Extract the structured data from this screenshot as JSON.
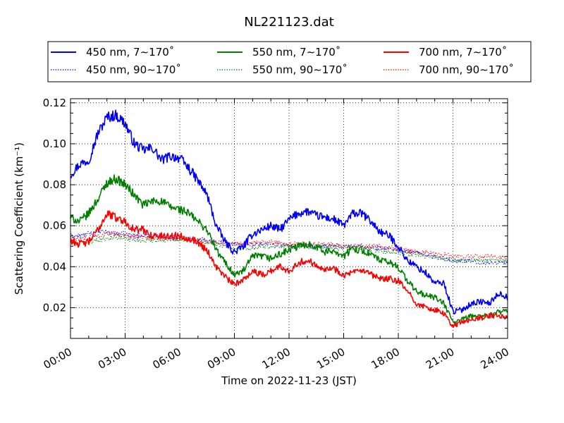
{
  "chart_data": {
    "type": "line",
    "title": "NL221123.dat",
    "xlabel": "Time on 2022-11-23 (JST)",
    "ylabel": "Scattering Coefficient (km⁻¹)",
    "xlim": [
      0,
      24
    ],
    "ylim": [
      0.005,
      0.122
    ],
    "x_ticks": [
      0,
      3,
      6,
      9,
      12,
      15,
      18,
      21,
      24
    ],
    "x_tick_labels": [
      "00:00",
      "03:00",
      "06:00",
      "09:00",
      "12:00",
      "15:00",
      "18:00",
      "21:00",
      "24:00"
    ],
    "y_ticks": [
      0.02,
      0.04,
      0.06,
      0.08,
      0.1,
      0.12
    ],
    "y_tick_labels": [
      "0.02",
      "0.04",
      "0.06",
      "0.08",
      "0.10",
      "0.12"
    ],
    "grid": true,
    "legend_position": "top",
    "series": [
      {
        "name": "450 nm, 7∼170˚",
        "color": "#0000ff",
        "style": "solid",
        "x": [
          0,
          0.5,
          1,
          1.5,
          2,
          2.5,
          3,
          3.5,
          4,
          4.5,
          5,
          5.5,
          6,
          6.5,
          7,
          7.5,
          8,
          8.5,
          9,
          9.5,
          10,
          10.5,
          11,
          11.5,
          12,
          12.5,
          13,
          13.5,
          14,
          14.5,
          15,
          15.5,
          16,
          16.5,
          17,
          17.5,
          18,
          18.5,
          19,
          19.5,
          20,
          20.5,
          21,
          21.5,
          22,
          22.5,
          23,
          23.5,
          24
        ],
        "y": [
          0.085,
          0.09,
          0.092,
          0.105,
          0.113,
          0.114,
          0.11,
          0.1,
          0.097,
          0.098,
          0.092,
          0.094,
          0.093,
          0.088,
          0.082,
          0.075,
          0.06,
          0.052,
          0.047,
          0.05,
          0.056,
          0.058,
          0.06,
          0.058,
          0.063,
          0.066,
          0.067,
          0.065,
          0.064,
          0.063,
          0.06,
          0.066,
          0.066,
          0.062,
          0.057,
          0.055,
          0.05,
          0.043,
          0.04,
          0.037,
          0.032,
          0.032,
          0.018,
          0.019,
          0.022,
          0.023,
          0.022,
          0.027,
          0.025
        ]
      },
      {
        "name": "450 nm, 90∼170˚",
        "color": "#0000ff",
        "style": "dotted",
        "x": [
          0,
          0.5,
          1,
          1.5,
          2,
          2.5,
          3,
          3.5,
          4,
          4.5,
          5,
          5.5,
          6,
          6.5,
          7,
          7.5,
          8,
          8.5,
          9,
          9.5,
          10,
          10.5,
          11,
          11.5,
          12,
          12.5,
          13,
          13.5,
          14,
          14.5,
          15,
          15.5,
          16,
          16.5,
          17,
          17.5,
          18,
          18.5,
          19,
          19.5,
          20,
          20.5,
          21,
          21.5,
          22,
          22.5,
          23,
          23.5,
          24
        ],
        "y": [
          0.055,
          0.055,
          0.056,
          0.057,
          0.057,
          0.056,
          0.056,
          0.055,
          0.055,
          0.055,
          0.055,
          0.054,
          0.054,
          0.054,
          0.053,
          0.053,
          0.052,
          0.052,
          0.051,
          0.051,
          0.051,
          0.051,
          0.051,
          0.051,
          0.05,
          0.05,
          0.05,
          0.05,
          0.05,
          0.05,
          0.05,
          0.05,
          0.05,
          0.049,
          0.049,
          0.049,
          0.048,
          0.047,
          0.047,
          0.046,
          0.045,
          0.044,
          0.043,
          0.043,
          0.043,
          0.042,
          0.042,
          0.042,
          0.042
        ]
      },
      {
        "name": "550 nm, 7∼170˚",
        "color": "#008000",
        "style": "solid",
        "x": [
          0,
          0.5,
          1,
          1.5,
          2,
          2.5,
          3,
          3.5,
          4,
          4.5,
          5,
          5.5,
          6,
          6.5,
          7,
          7.5,
          8,
          8.5,
          9,
          9.5,
          10,
          10.5,
          11,
          11.5,
          12,
          12.5,
          13,
          13.5,
          14,
          14.5,
          15,
          15.5,
          16,
          16.5,
          17,
          17.5,
          18,
          18.5,
          19,
          19.5,
          20,
          20.5,
          21,
          21.5,
          22,
          22.5,
          23,
          23.5,
          24
        ],
        "y": [
          0.064,
          0.062,
          0.066,
          0.073,
          0.081,
          0.083,
          0.08,
          0.075,
          0.07,
          0.072,
          0.072,
          0.069,
          0.068,
          0.066,
          0.062,
          0.058,
          0.048,
          0.042,
          0.036,
          0.038,
          0.045,
          0.045,
          0.044,
          0.046,
          0.048,
          0.05,
          0.051,
          0.05,
          0.047,
          0.048,
          0.045,
          0.049,
          0.048,
          0.046,
          0.043,
          0.042,
          0.04,
          0.033,
          0.028,
          0.026,
          0.025,
          0.022,
          0.013,
          0.014,
          0.016,
          0.016,
          0.016,
          0.018,
          0.018
        ]
      },
      {
        "name": "550 nm, 90∼170˚",
        "color": "#008000",
        "style": "dotted",
        "x": [
          0,
          0.5,
          1,
          1.5,
          2,
          2.5,
          3,
          3.5,
          4,
          4.5,
          5,
          5.5,
          6,
          6.5,
          7,
          7.5,
          8,
          8.5,
          9,
          9.5,
          10,
          10.5,
          11,
          11.5,
          12,
          12.5,
          13,
          13.5,
          14,
          14.5,
          15,
          15.5,
          16,
          16.5,
          17,
          17.5,
          18,
          18.5,
          19,
          19.5,
          20,
          20.5,
          21,
          21.5,
          22,
          22.5,
          23,
          23.5,
          24
        ],
        "y": [
          0.052,
          0.051,
          0.052,
          0.053,
          0.054,
          0.054,
          0.054,
          0.053,
          0.053,
          0.053,
          0.053,
          0.053,
          0.053,
          0.053,
          0.052,
          0.052,
          0.051,
          0.05,
          0.049,
          0.049,
          0.049,
          0.05,
          0.05,
          0.05,
          0.05,
          0.05,
          0.05,
          0.05,
          0.05,
          0.049,
          0.049,
          0.049,
          0.049,
          0.048,
          0.048,
          0.047,
          0.047,
          0.046,
          0.046,
          0.045,
          0.045,
          0.044,
          0.043,
          0.043,
          0.043,
          0.043,
          0.043,
          0.043,
          0.043
        ]
      },
      {
        "name": "700 nm, 7∼170˚",
        "color": "#ff0000",
        "style": "solid",
        "x": [
          0,
          0.5,
          1,
          1.5,
          2,
          2.5,
          3,
          3.5,
          4,
          4.5,
          5,
          5.5,
          6,
          6.5,
          7,
          7.5,
          8,
          8.5,
          9,
          9.5,
          10,
          10.5,
          11,
          11.5,
          12,
          12.5,
          13,
          13.5,
          14,
          14.5,
          15,
          15.5,
          16,
          16.5,
          17,
          17.5,
          18,
          18.5,
          19,
          19.5,
          20,
          20.5,
          21,
          21.5,
          22,
          22.5,
          23,
          23.5,
          24
        ],
        "y": [
          0.053,
          0.051,
          0.052,
          0.058,
          0.066,
          0.064,
          0.062,
          0.058,
          0.058,
          0.055,
          0.055,
          0.055,
          0.055,
          0.054,
          0.052,
          0.048,
          0.04,
          0.035,
          0.031,
          0.034,
          0.038,
          0.036,
          0.038,
          0.04,
          0.038,
          0.042,
          0.043,
          0.041,
          0.039,
          0.039,
          0.036,
          0.037,
          0.038,
          0.036,
          0.034,
          0.034,
          0.033,
          0.028,
          0.022,
          0.02,
          0.019,
          0.017,
          0.011,
          0.013,
          0.014,
          0.015,
          0.016,
          0.016,
          0.015
        ]
      },
      {
        "name": "700 nm, 90∼170˚",
        "color": "#ff0000",
        "style": "dotted",
        "x": [
          0,
          0.5,
          1,
          1.5,
          2,
          2.5,
          3,
          3.5,
          4,
          4.5,
          5,
          5.5,
          6,
          6.5,
          7,
          7.5,
          8,
          8.5,
          9,
          9.5,
          10,
          10.5,
          11,
          11.5,
          12,
          12.5,
          13,
          13.5,
          14,
          14.5,
          15,
          15.5,
          16,
          16.5,
          17,
          17.5,
          18,
          18.5,
          19,
          19.5,
          20,
          20.5,
          21,
          21.5,
          22,
          22.5,
          23,
          23.5,
          24
        ],
        "y": [
          0.054,
          0.053,
          0.054,
          0.055,
          0.056,
          0.056,
          0.055,
          0.055,
          0.055,
          0.054,
          0.054,
          0.054,
          0.054,
          0.053,
          0.053,
          0.052,
          0.052,
          0.051,
          0.051,
          0.051,
          0.051,
          0.052,
          0.052,
          0.052,
          0.051,
          0.051,
          0.051,
          0.051,
          0.051,
          0.051,
          0.05,
          0.05,
          0.05,
          0.05,
          0.05,
          0.049,
          0.049,
          0.048,
          0.047,
          0.047,
          0.046,
          0.046,
          0.045,
          0.045,
          0.045,
          0.045,
          0.045,
          0.045,
          0.044
        ]
      }
    ]
  }
}
